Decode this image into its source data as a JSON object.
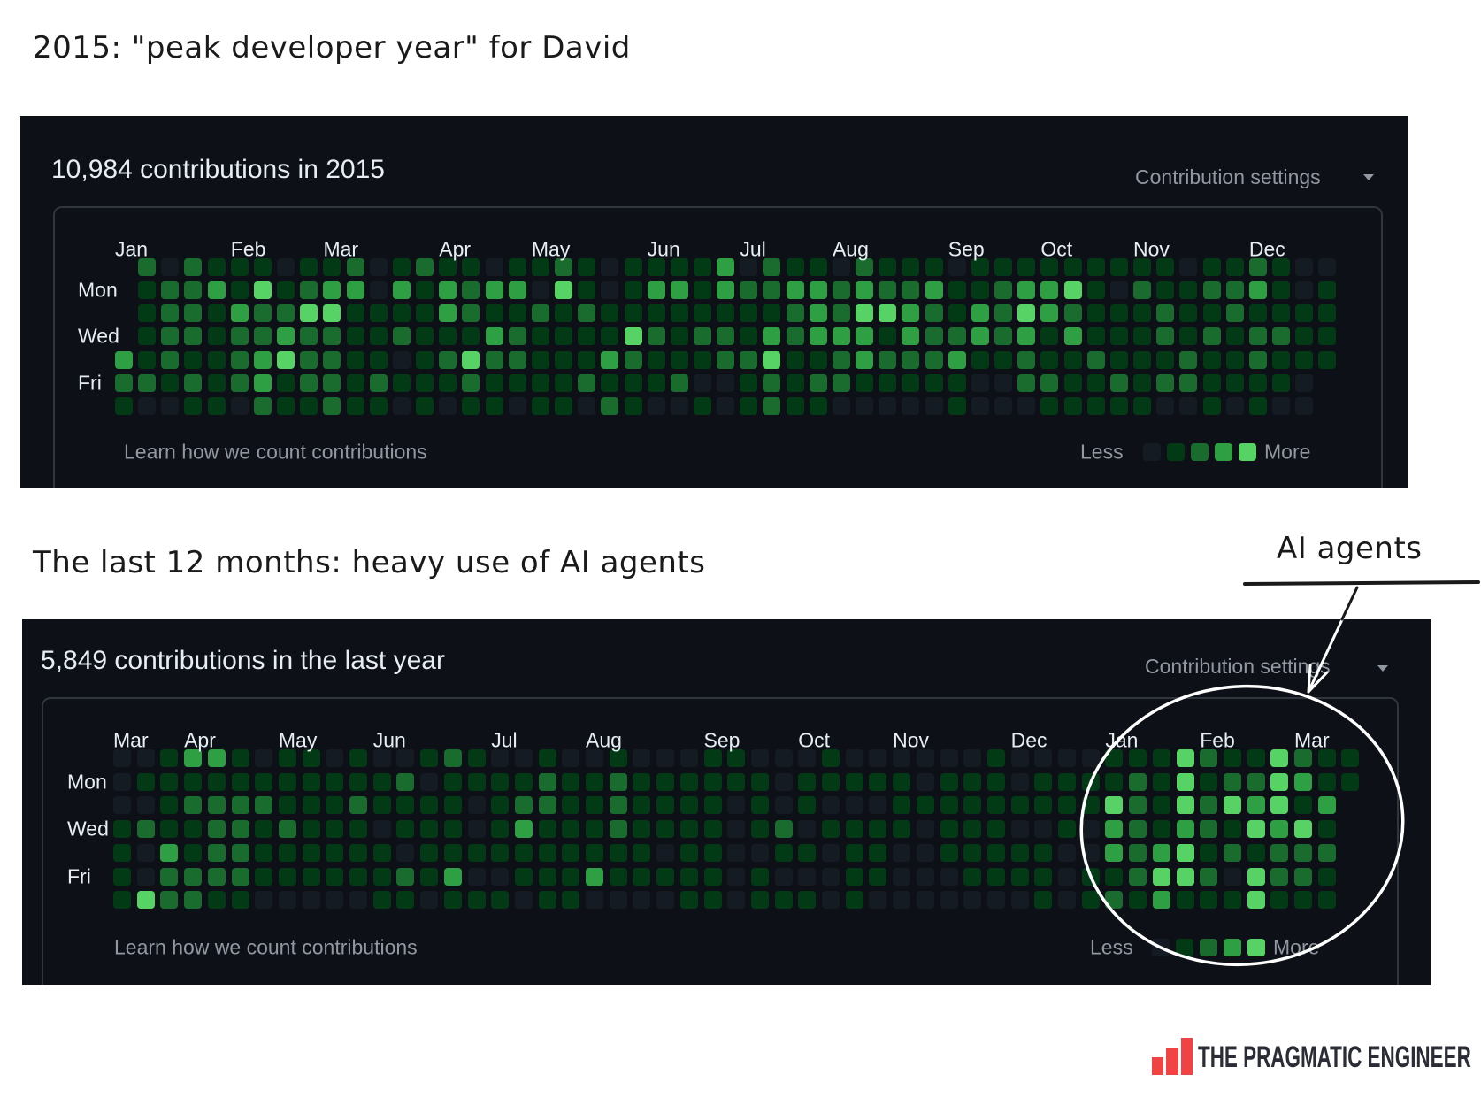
{
  "annotations": {
    "title_2015": "2015: \"peak developer year\" for David",
    "title_last12": "The last 12 months: heavy use of AI agents",
    "callout": "AI agents"
  },
  "colors": {
    "panel_bg": "#0d1117",
    "levels": [
      "#151b23",
      "#033a16",
      "#196c2e",
      "#2ea043",
      "#56d364"
    ],
    "annotation_stroke": "#ffffff",
    "logo_red": "#f04444"
  },
  "logo": {
    "text": "THE PRAGMATIC ENGINEER",
    "icon": "bar-chart-logo-icon"
  },
  "chart_data": [
    {
      "type": "heatmap",
      "title": "10,984 contributions in 2015",
      "settings_label": "Contribution settings",
      "months": [
        {
          "label": "Jan",
          "week": 0
        },
        {
          "label": "Feb",
          "week": 5
        },
        {
          "label": "Mar",
          "week": 9
        },
        {
          "label": "Apr",
          "week": 14
        },
        {
          "label": "May",
          "week": 18
        },
        {
          "label": "Jun",
          "week": 23
        },
        {
          "label": "Jul",
          "week": 27
        },
        {
          "label": "Aug",
          "week": 31
        },
        {
          "label": "Sep",
          "week": 36
        },
        {
          "label": "Oct",
          "week": 40
        },
        {
          "label": "Nov",
          "week": 44
        },
        {
          "label": "Dec",
          "week": 49
        }
      ],
      "day_labels": [
        {
          "label": "Mon",
          "row": 1
        },
        {
          "label": "Wed",
          "row": 3
        },
        {
          "label": "Fri",
          "row": 5
        }
      ],
      "level_scale": [
        0,
        4
      ],
      "levels_by_weekday": [
        "-2021110112012110112101111302110211101111111110112100",
        "-1223141233031323304101331322332322311233410211223101",
        "-1221322441111321121211111111232443213243211121121111",
        "-1221223221121113211114212213233313223231311121212211",
        "31211234221101242211132111224112322231121121112112111",
        "2212123122121112111121112001212211111002211212211110-",
        "1001102112110101101102100101211000001000111110010100-"
      ],
      "footer_link": "Learn how we count contributions",
      "legend": {
        "less": "Less",
        "more": "More"
      }
    },
    {
      "type": "heatmap",
      "title": "5,849 contributions in the last year",
      "settings_label": "Contribution settings",
      "months": [
        {
          "label": "Mar",
          "week": 0
        },
        {
          "label": "Apr",
          "week": 3
        },
        {
          "label": "May",
          "week": 7
        },
        {
          "label": "Jun",
          "week": 11
        },
        {
          "label": "Jul",
          "week": 16
        },
        {
          "label": "Aug",
          "week": 20
        },
        {
          "label": "Sep",
          "week": 25
        },
        {
          "label": "Oct",
          "week": 29
        },
        {
          "label": "Nov",
          "week": 33
        },
        {
          "label": "Dec",
          "week": 38
        },
        {
          "label": "Jan",
          "week": 42
        },
        {
          "label": "Feb",
          "week": 46
        },
        {
          "label": "Mar",
          "week": 50
        }
      ],
      "day_labels": [
        {
          "label": "Mon",
          "row": 1
        },
        {
          "label": "Wed",
          "row": 3
        },
        {
          "label": "Fri",
          "row": 5
        }
      ],
      "level_scale": [
        0,
        4
      ],
      "levels_by_weekday": [
        "00133101101001210010010001100010000001000011142114211",
        "01111111111120111121121111110111110111011112141224311",
        "0012222111211110122112111101010001111111114214243413-",
        "1211221211101110131112111101201111011100103213214341-",
        "1031221111110111111111101100110110011111003234121222-",
        "1022221111112130011131111101000110001111011244204221-",
        "1422110000011011101100001101110100000001012131114111-"
      ],
      "footer_link": "Learn how we count contributions",
      "legend": {
        "less": "Less",
        "more": "More"
      }
    }
  ]
}
